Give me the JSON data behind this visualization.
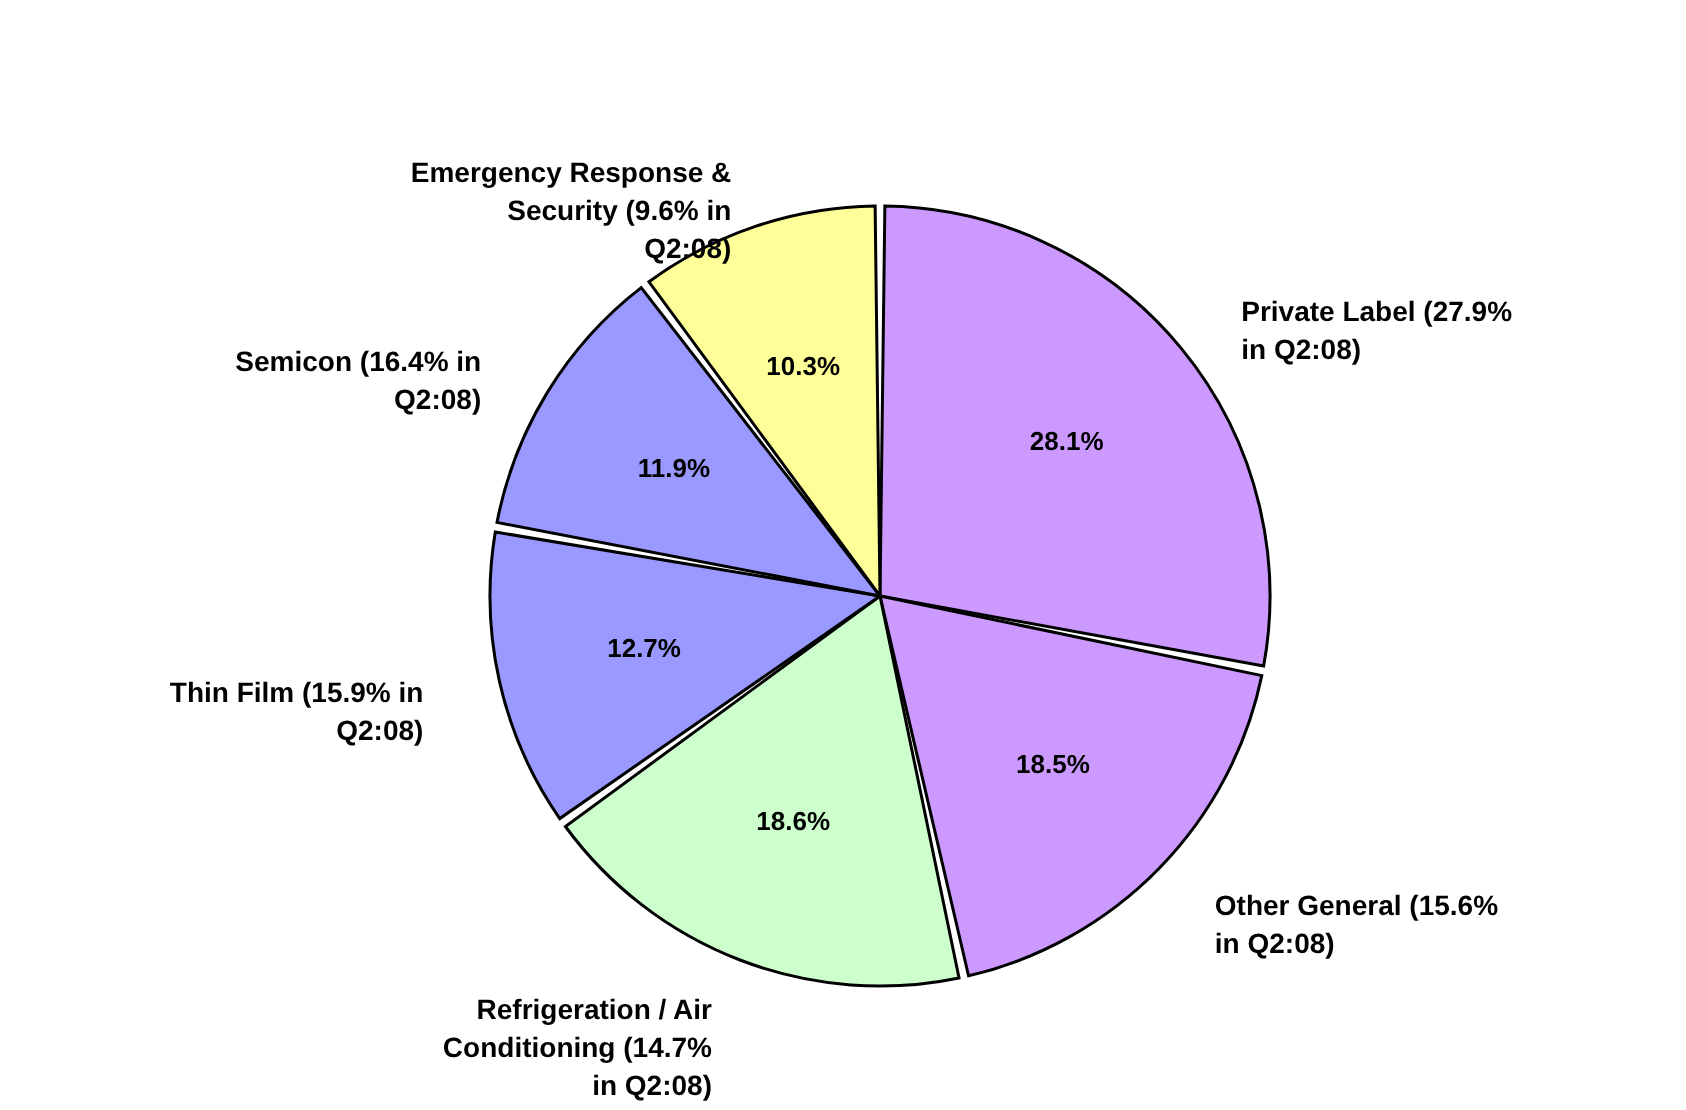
{
  "chart_data": {
    "type": "pie",
    "categories": [
      "Private Label (27.9% in Q2:08)",
      "Other General (15.6% in Q2:08)",
      "Refrigeration / Air Conditioning (14.7% in Q2:08)",
      "Thin Film (15.9% in Q2:08)",
      "Semicon (16.4% in Q2:08)",
      "Emergency Response & Security (9.6% in Q2:08)"
    ],
    "values": [
      28.1,
      18.5,
      18.6,
      12.7,
      11.9,
      10.3
    ],
    "value_labels": [
      "28.1%",
      "18.5%",
      "18.6%",
      "12.7%",
      "11.9%",
      "10.3%"
    ],
    "colors": [
      "#cc99ff",
      "#cc99ff",
      "#ccffcc",
      "#9999ff",
      "#9999ff",
      "#ffff99"
    ]
  }
}
